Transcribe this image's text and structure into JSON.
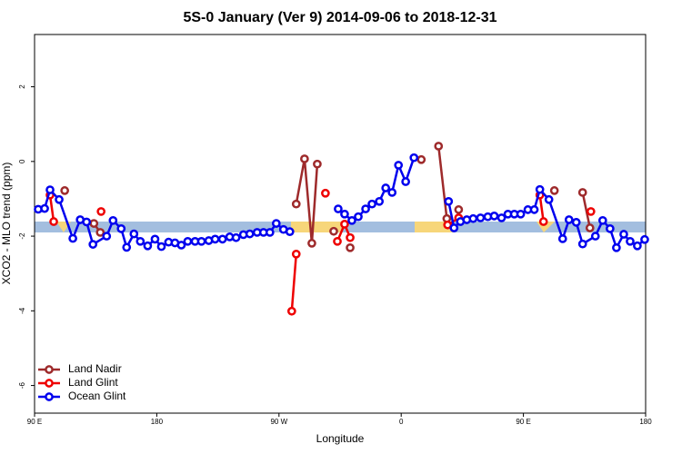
{
  "chart_data": {
    "type": "line",
    "title": "5S-0 January (Ver 9)   2014-09-06 to 2018-12-31",
    "x_label": "Longitude",
    "y_label": "XCO2 - MLO trend (ppm)",
    "xlim": [
      90,
      540
    ],
    "ylim": [
      -6.74,
      3.4
    ],
    "xticks": [
      {
        "value": 90,
        "label": "90 E"
      },
      {
        "value": 180,
        "label": "180"
      },
      {
        "value": 270,
        "label": "90 W"
      },
      {
        "value": 360,
        "label": "0"
      },
      {
        "value": 450,
        "label": "90 E"
      },
      {
        "value": 540,
        "label": "180"
      }
    ],
    "yticks": [
      -6,
      -4,
      -2,
      0,
      2
    ],
    "legend": "bottom-left",
    "series": [
      {
        "name": "Land Nadir",
        "color": "#9e2a2b",
        "x": [
          112.2,
          null,
          133.7,
          138.4,
          null,
          282.7,
          288.8,
          294.2,
          298.2,
          null,
          310.3,
          null,
          322.4,
          null,
          374.8,
          null,
          387.5,
          393.6,
          null,
          402.3,
          null,
          472.8,
          null,
          493.6,
          499.0
        ],
        "values": [
          -0.78,
          null,
          -1.66,
          -1.9,
          null,
          -1.14,
          0.07,
          -2.19,
          -0.07,
          null,
          -1.87,
          null,
          -2.31,
          null,
          0.05,
          null,
          0.41,
          -1.53,
          null,
          -1.29,
          null,
          -0.78,
          null,
          -0.83,
          -1.78
        ]
      },
      {
        "name": "Land Glint",
        "color": "#ee0000",
        "x": [
          101.4,
          104.1,
          null,
          139.0,
          null,
          279.4,
          282.7,
          null,
          304.2,
          null,
          313.0,
          318.3,
          322.4,
          null,
          394.2,
          402.3,
          null,
          462.1,
          464.8,
          null,
          499.7
        ],
        "values": [
          -0.9,
          -1.61,
          null,
          -1.34,
          null,
          -4.01,
          -2.48,
          null,
          -0.85,
          null,
          -2.14,
          -1.68,
          -2.04,
          null,
          -1.7,
          -1.51,
          null,
          -0.9,
          -1.61,
          null,
          -1.34
        ]
      },
      {
        "name": "Ocean Glint",
        "color": "#0000ee",
        "x": [
          92.7,
          97.4,
          101.4,
          108.1,
          118.2,
          123.6,
          128.3,
          133.0,
          143.1,
          147.8,
          153.8,
          157.8,
          163.2,
          167.9,
          173.3,
          178.7,
          183.4,
          188.7,
          193.4,
          198.1,
          202.8,
          208.2,
          212.9,
          218.3,
          223.0,
          228.4,
          233.7,
          238.4,
          243.8,
          248.5,
          253.9,
          258.6,
          263.3,
          268.0,
          273.3,
          278.0,
          null,
          313.6,
          318.3,
          323.7,
          328.4,
          333.8,
          338.5,
          343.9,
          348.6,
          353.3,
          358.0,
          363.3,
          369.4,
          null,
          394.9,
          398.9,
          403.6,
          408.3,
          413.0,
          418.4,
          423.8,
          428.5,
          433.9,
          438.6,
          443.3,
          448.0,
          453.3,
          458.0,
          462.1,
          468.8,
          478.9,
          483.6,
          488.9,
          493.6,
          503.0,
          508.4,
          513.8,
          518.5,
          523.9,
          528.6,
          533.9,
          539.3
        ],
        "values": [
          -1.28,
          -1.26,
          -0.76,
          -1.02,
          -2.06,
          -1.56,
          -1.62,
          -2.22,
          -2.0,
          -1.58,
          -1.8,
          -2.3,
          -1.94,
          -2.14,
          -2.26,
          -2.08,
          -2.28,
          -2.16,
          -2.18,
          -2.24,
          -2.14,
          -2.14,
          -2.14,
          -2.12,
          -2.08,
          -2.08,
          -2.02,
          -2.04,
          -1.96,
          -1.94,
          -1.9,
          -1.9,
          -1.9,
          -1.66,
          -1.82,
          -1.88,
          null,
          -1.27,
          -1.41,
          -1.58,
          -1.48,
          -1.27,
          -1.14,
          -1.07,
          -0.71,
          -0.83,
          -0.1,
          -0.54,
          0.1,
          null,
          -1.07,
          -1.78,
          -1.61,
          -1.56,
          -1.53,
          -1.51,
          -1.48,
          -1.46,
          -1.51,
          -1.41,
          -1.41,
          -1.41,
          -1.29,
          -1.29,
          -0.75,
          -1.02,
          -2.07,
          -1.56,
          -1.63,
          -2.21,
          -2.0,
          -1.58,
          -1.8,
          -2.31,
          -1.95,
          -2.14,
          -2.26,
          -2.09
        ]
      }
    ]
  }
}
